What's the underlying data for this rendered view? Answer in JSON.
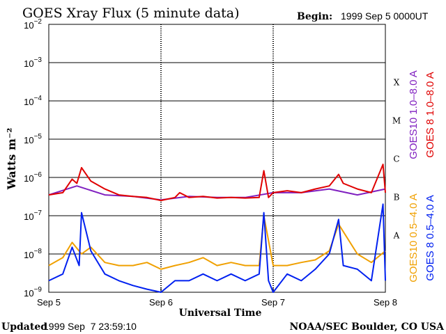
{
  "header": {
    "title": "GOES Xray Flux (5 minute data)",
    "begin_label": "Begin:",
    "begin_value": "1999 Sep 5 0000UT"
  },
  "footer": {
    "updated_label": "Updated",
    "updated_value": "1999 Sep  7 23:59:10",
    "credit": "NOAA/SEC Boulder, CO USA"
  },
  "colors": {
    "goes8_long": "#e00000",
    "goes10_long": "#8020c0",
    "goes10_short": "#f0a000",
    "goes8_short": "#0020f0",
    "axes": "#000000"
  },
  "chart_data": {
    "type": "line",
    "title": "GOES Xray Flux (5 minute data)",
    "xlabel": "Universal Time",
    "ylabel": "Watts m⁻²",
    "y_scale": "log",
    "ylim": [
      1e-09,
      0.01
    ],
    "xlim": [
      "1999 Sep 5 00:00",
      "1999 Sep 8 00:00"
    ],
    "x_ticks": [
      "Sep 5",
      "Sep 6",
      "Sep 7",
      "Sep 8"
    ],
    "y_ticks": [
      {
        "base": "10",
        "exp": "−2"
      },
      {
        "base": "10",
        "exp": "−3"
      },
      {
        "base": "10",
        "exp": "−4"
      },
      {
        "base": "10",
        "exp": "−5"
      },
      {
        "base": "10",
        "exp": "−6"
      },
      {
        "base": "10",
        "exp": "−7"
      },
      {
        "base": "10",
        "exp": "−8"
      },
      {
        "base": "10",
        "exp": "−9"
      }
    ],
    "flare_classes": [
      {
        "label": "X",
        "flux": 0.0001
      },
      {
        "label": "M",
        "flux": 1e-05
      },
      {
        "label": "C",
        "flux": 1e-06
      },
      {
        "label": "B",
        "flux": 1e-07
      },
      {
        "label": "A",
        "flux": 1e-08
      }
    ],
    "grid": "horizontal at each decade, dotted at day boundaries",
    "legend_placement": "right, vertical",
    "series": [
      {
        "name": "GOES10 1.0–8.0 A",
        "color": "#8020c0",
        "x": [
          "1999-09-05 00:00",
          "1999-09-05 06:00",
          "1999-09-05 12:00",
          "1999-09-05 18:00",
          "1999-09-06 00:00",
          "1999-09-06 06:00",
          "1999-09-06 12:00",
          "1999-09-06 18:00",
          "1999-09-07 00:00",
          "1999-09-07 06:00",
          "1999-09-07 12:00",
          "1999-09-07 18:00",
          "1999-09-08 00:00"
        ],
        "values": [
          3.5e-07,
          6e-07,
          3.5e-07,
          3.2e-07,
          2.6e-07,
          3.2e-07,
          3e-07,
          3e-07,
          4e-07,
          4e-07,
          5e-07,
          3.5e-07,
          5e-07
        ]
      },
      {
        "name": "GOES 8 1.0–8.0 A",
        "color": "#e00000",
        "x": [
          "1999-09-05 00:00",
          "1999-09-05 03:00",
          "1999-09-05 05:00",
          "1999-09-05 06:00",
          "1999-09-05 07:00",
          "1999-09-05 09:00",
          "1999-09-05 12:00",
          "1999-09-05 15:00",
          "1999-09-05 18:00",
          "1999-09-05 21:00",
          "1999-09-06 00:00",
          "1999-09-06 03:00",
          "1999-09-06 04:00",
          "1999-09-06 06:00",
          "1999-09-06 09:00",
          "1999-09-06 12:00",
          "1999-09-06 15:00",
          "1999-09-06 18:00",
          "1999-09-06 21:00",
          "1999-09-06 22:00",
          "1999-09-06 23:00",
          "1999-09-07 00:00",
          "1999-09-07 03:00",
          "1999-09-07 06:00",
          "1999-09-07 09:00",
          "1999-09-07 12:00",
          "1999-09-07 14:00",
          "1999-09-07 15:00",
          "1999-09-07 18:00",
          "1999-09-07 21:00",
          "1999-09-07 23:30",
          "1999-09-08 00:00"
        ],
        "values": [
          3.5e-07,
          4e-07,
          9e-07,
          7e-07,
          1.8e-06,
          8e-07,
          5e-07,
          3.5e-07,
          3.2e-07,
          3e-07,
          2.5e-07,
          3e-07,
          4e-07,
          3e-07,
          3.2e-07,
          2.9e-07,
          3e-07,
          2.9e-07,
          3e-07,
          1.5e-06,
          3e-07,
          4e-07,
          4.5e-07,
          4e-07,
          5e-07,
          6e-07,
          1.2e-06,
          7e-07,
          5e-07,
          4e-07,
          2.2e-06,
          4e-07
        ]
      },
      {
        "name": "GOES10 0.5–4.0 A",
        "color": "#f0a000",
        "x": [
          "1999-09-05 00:00",
          "1999-09-05 03:00",
          "1999-09-05 05:00",
          "1999-09-05 07:00",
          "1999-09-05 09:00",
          "1999-09-05 12:00",
          "1999-09-05 15:00",
          "1999-09-05 18:00",
          "1999-09-05 21:00",
          "1999-09-06 00:00",
          "1999-09-06 03:00",
          "1999-09-06 06:00",
          "1999-09-06 09:00",
          "1999-09-06 12:00",
          "1999-09-06 15:00",
          "1999-09-06 18:00",
          "1999-09-06 21:00",
          "1999-09-06 22:00",
          "1999-09-07 00:00",
          "1999-09-07 03:00",
          "1999-09-07 06:00",
          "1999-09-07 09:00",
          "1999-09-07 12:00",
          "1999-09-07 14:00",
          "1999-09-07 18:00",
          "1999-09-07 21:00",
          "1999-09-08 00:00"
        ],
        "values": [
          5e-09,
          8e-09,
          2e-08,
          1e-08,
          1.5e-08,
          6e-09,
          5e-09,
          5e-09,
          6e-09,
          4e-09,
          5e-09,
          6e-09,
          8e-09,
          5e-09,
          6e-09,
          5e-09,
          5e-09,
          1e-07,
          5e-09,
          5e-09,
          6e-09,
          7e-09,
          1.2e-08,
          6e-08,
          1e-08,
          6e-09,
          1.2e-08
        ]
      },
      {
        "name": "GOES 8 0.5–4.0 A",
        "color": "#0020f0",
        "x": [
          "1999-09-05 00:00",
          "1999-09-05 03:00",
          "1999-09-05 05:00",
          "1999-09-05 06:30",
          "1999-09-05 07:00",
          "1999-09-05 09:00",
          "1999-09-05 12:00",
          "1999-09-05 15:00",
          "1999-09-05 18:00",
          "1999-09-05 21:00",
          "1999-09-06 00:00",
          "1999-09-06 03:00",
          "1999-09-06 06:00",
          "1999-09-06 09:00",
          "1999-09-06 12:00",
          "1999-09-06 15:00",
          "1999-09-06 18:00",
          "1999-09-06 21:00",
          "1999-09-06 22:00",
          "1999-09-06 23:00",
          "1999-09-07 00:00",
          "1999-09-07 03:00",
          "1999-09-07 06:00",
          "1999-09-07 09:00",
          "1999-09-07 12:00",
          "1999-09-07 14:00",
          "1999-09-07 15:00",
          "1999-09-07 18:00",
          "1999-09-07 21:00",
          "1999-09-07 23:30",
          "1999-09-08 00:00"
        ],
        "values": [
          2e-09,
          3e-09,
          1.5e-08,
          5e-09,
          1.2e-07,
          1.2e-08,
          3e-09,
          2e-09,
          1.5e-09,
          1.2e-09,
          1e-09,
          2e-09,
          2e-09,
          3e-09,
          2e-09,
          3e-09,
          2e-09,
          3e-09,
          1.2e-07,
          2e-09,
          1e-09,
          3e-09,
          2e-09,
          4e-09,
          1e-08,
          8e-08,
          5e-09,
          4e-09,
          2e-09,
          2e-07,
          2e-09
        ]
      }
    ]
  }
}
